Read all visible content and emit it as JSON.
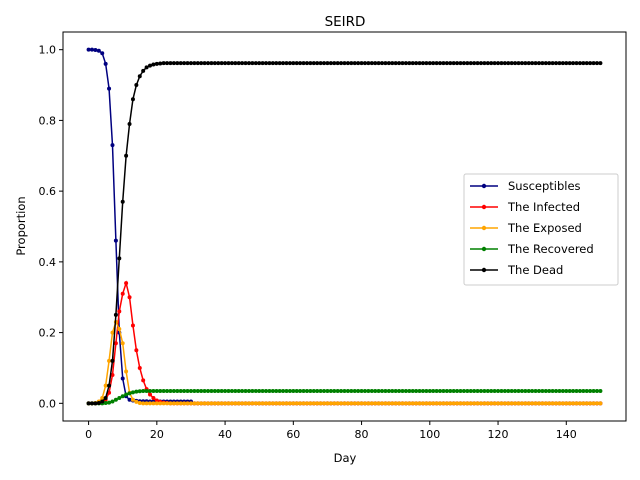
{
  "chart_data": {
    "type": "line",
    "title": "SEIRD",
    "xlabel": "Day",
    "ylabel": "Proportion",
    "xlim": [
      -7.5,
      157.5
    ],
    "ylim": [
      -0.05,
      1.05
    ],
    "xticks": [
      0,
      20,
      40,
      60,
      80,
      100,
      120,
      140
    ],
    "yticks": [
      0.0,
      0.2,
      0.4,
      0.6,
      0.8,
      1.0
    ],
    "grid": false,
    "legend_position": "center-right",
    "x_start": 0,
    "x_end": 150,
    "series": [
      {
        "name": "Susceptibles",
        "color": "#000080",
        "values": [
          1.0,
          1.0,
          0.999,
          0.997,
          0.99,
          0.96,
          0.89,
          0.73,
          0.46,
          0.2,
          0.07,
          0.02,
          0.01,
          0.008,
          0.007,
          0.006,
          0.006,
          0.006,
          0.005,
          0.005,
          0.005,
          0.005,
          0.005,
          0.005,
          0.005,
          0.005,
          0.005,
          0.005,
          0.005,
          0.005,
          0.005
        ],
        "tail": 0.0
      },
      {
        "name": "The Infected",
        "color": "#ff0000",
        "values": [
          0.0,
          0.0,
          0.0,
          0.001,
          0.003,
          0.01,
          0.03,
          0.08,
          0.17,
          0.26,
          0.31,
          0.34,
          0.3,
          0.22,
          0.15,
          0.1,
          0.065,
          0.04,
          0.025,
          0.015,
          0.008,
          0.004,
          0.002,
          0.001
        ],
        "tail": 0.0
      },
      {
        "name": "The Exposed",
        "color": "#ffa500",
        "values": [
          0.0,
          0.0,
          0.001,
          0.005,
          0.015,
          0.05,
          0.12,
          0.2,
          0.23,
          0.21,
          0.17,
          0.09,
          0.03,
          0.01,
          0.004,
          0.001
        ],
        "tail": 0.0
      },
      {
        "name": "The Recovered",
        "color": "#008000",
        "values": [
          0.0,
          0.0,
          0.0,
          0.0,
          0.0,
          0.001,
          0.002,
          0.005,
          0.01,
          0.015,
          0.02,
          0.025,
          0.028,
          0.031,
          0.033,
          0.034,
          0.035,
          0.035
        ],
        "tail": 0.035
      },
      {
        "name": "The Dead",
        "color": "#000000",
        "values": [
          0.0,
          0.0,
          0.0,
          0.001,
          0.005,
          0.015,
          0.05,
          0.12,
          0.25,
          0.41,
          0.57,
          0.7,
          0.79,
          0.86,
          0.9,
          0.925,
          0.94,
          0.95,
          0.955,
          0.958,
          0.96,
          0.961,
          0.962
        ],
        "tail": 0.962
      }
    ]
  }
}
